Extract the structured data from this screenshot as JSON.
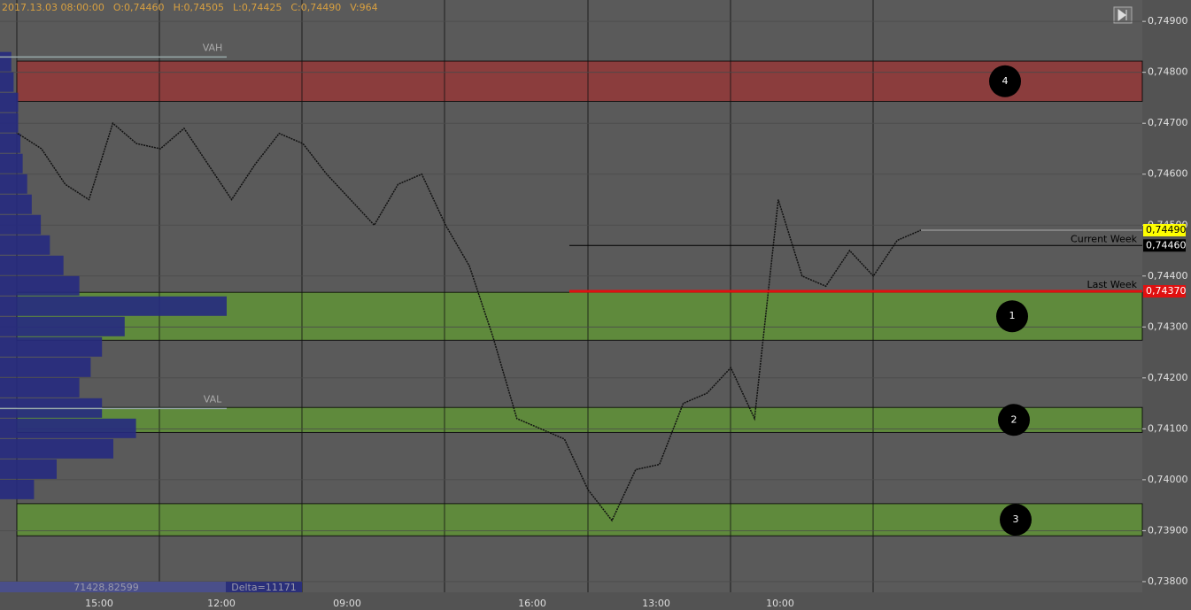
{
  "chart_data": {
    "type": "line",
    "header": [
      "2017.13.03 08:00:00",
      "O:0,74460",
      "H:0,74505",
      "L:0,74425",
      "C:0,74490",
      "V:964"
    ],
    "ylim": [
      0.73779,
      0.74942
    ],
    "yticks": [
      {
        "value": 0.749,
        "label": "0,74900"
      },
      {
        "value": 0.748,
        "label": "0,74800"
      },
      {
        "value": 0.747,
        "label": "0,74700"
      },
      {
        "value": 0.746,
        "label": "0,74600"
      },
      {
        "value": 0.745,
        "label": "0,74500"
      },
      {
        "value": 0.744,
        "label": "0,74400"
      },
      {
        "value": 0.743,
        "label": "0,74300"
      },
      {
        "value": 0.742,
        "label": "0,74200"
      },
      {
        "value": 0.741,
        "label": "0,74100"
      },
      {
        "value": 0.74,
        "label": "0,74000"
      },
      {
        "value": 0.739,
        "label": "0,73900"
      },
      {
        "value": 0.738,
        "label": "0,73800"
      }
    ],
    "xtick_labels": [
      "15:00",
      "12:00",
      "09:00",
      "16:00",
      "13:00",
      "10:00"
    ],
    "grid": true,
    "series": [
      {
        "color": "#111111",
        "values": [
          0.7468,
          0.7465,
          0.7458,
          0.7455,
          0.747,
          0.7466,
          0.7465,
          0.7469,
          0.7462,
          0.7455,
          0.7462,
          0.7468,
          0.7466,
          0.746,
          0.7455,
          0.745,
          0.7458,
          0.746,
          0.745,
          0.7442,
          0.7428,
          0.7412,
          0.741,
          0.7408,
          0.7398,
          0.7392,
          0.7402,
          0.7403,
          0.7415,
          0.7417,
          0.7422,
          0.7412,
          0.7455,
          0.744,
          0.7438,
          0.7445,
          0.744,
          0.7447,
          0.7449
        ]
      }
    ],
    "zones": [
      {
        "label": "4",
        "low": 0.74743,
        "high": 0.74822,
        "color": "#8b3d3d"
      },
      {
        "label": "1",
        "low": 0.74274,
        "high": 0.74368,
        "color": "#5f8a3c"
      },
      {
        "label": "2",
        "low": 0.74093,
        "high": 0.74142,
        "color": "#5f8a3c"
      },
      {
        "label": "3",
        "low": 0.7389,
        "high": 0.73953,
        "color": "#5f8a3c"
      }
    ],
    "levels": [
      {
        "name": "Current Week",
        "value": 0.7446,
        "label": "0,74460",
        "color": "#000000"
      },
      {
        "name": "Last Week",
        "value": 0.7437,
        "label": "0,74370",
        "color": "#e01010"
      }
    ],
    "last_price": {
      "value": 0.7449,
      "label": "0,74490",
      "color": "#ffff00"
    },
    "value_area": {
      "high": 0.7483,
      "low": 0.7414,
      "high_label": "VAH",
      "low_label": "VAL"
    },
    "volume_profile": {
      "color": "#262a80",
      "xlim": [
        0,
        100
      ],
      "levels": [
        0.7482,
        0.7478,
        0.7474,
        0.747,
        0.7466,
        0.7462,
        0.7458,
        0.7454,
        0.745,
        0.7446,
        0.7442,
        0.7438,
        0.7434,
        0.743,
        0.7426,
        0.7422,
        0.7418,
        0.7414,
        0.741,
        0.7406,
        0.7402,
        0.7398
      ],
      "values": [
        5,
        6,
        8,
        8,
        9,
        10,
        12,
        14,
        18,
        22,
        28,
        35,
        100,
        55,
        45,
        40,
        35,
        45,
        60,
        50,
        25,
        15
      ]
    },
    "footer": [
      "71428,82599",
      "Delta=11171"
    ]
  }
}
